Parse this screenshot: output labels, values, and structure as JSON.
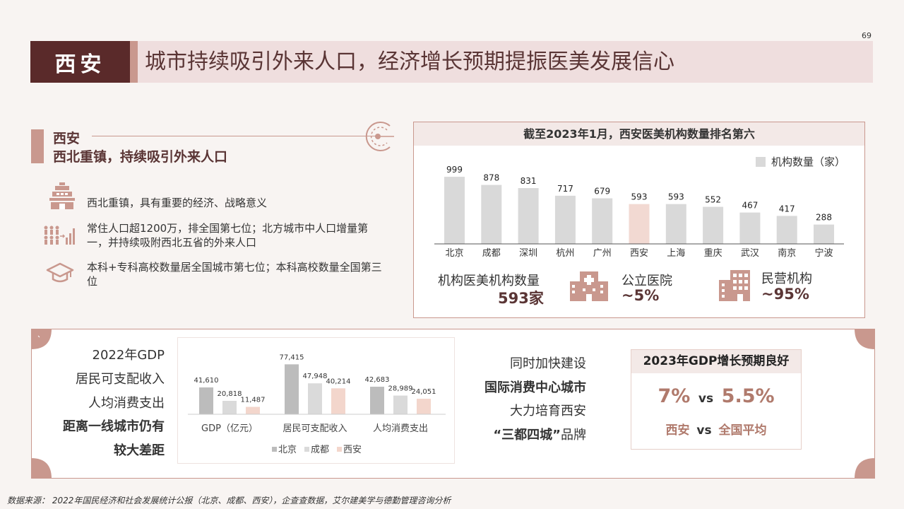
{
  "page_number": "69",
  "header": {
    "city": "西安",
    "title": "城市持续吸引外来人口，经济增长预期提振医美发展信心"
  },
  "section": {
    "title_line1": "西安",
    "title_line2": "西北重镇，持续吸引外来人口",
    "bullets": [
      {
        "icon": "pagoda-icon",
        "text": "西北重镇，具有重要的经济、战略意义"
      },
      {
        "icon": "population-growth-icon",
        "text": "常住人口超1200万，排全国第七位；北方城市中人口增量第一，并持续吸附西北五省的外来人口"
      },
      {
        "icon": "graduation-cap-icon",
        "text": "本科+专科高校数量居全国城市第七位；本科高校数量全国第三位"
      }
    ]
  },
  "institution_chart": {
    "title": "截至2023年1月，西安医美机构数量排名第六",
    "legend": "机构数量（家）",
    "stats": {
      "total_label": "机构医美机构数量",
      "total_value": "593家",
      "public_label": "公立医院",
      "public_value": "~5%",
      "private_label": "民营机构",
      "private_value": "~95%"
    }
  },
  "bottom": {
    "left_lines": [
      "2022年GDP",
      "居民可支配收入",
      "人均消费支出"
    ],
    "left_bold_lines": [
      "距离一线城市仍有",
      "较大差距"
    ],
    "mid_lines": [
      {
        "text": "同时加快建设",
        "bold": false
      },
      {
        "text": "国际消费中心城市",
        "bold": true
      },
      {
        "text": "大力培育西安",
        "bold": false
      },
      {
        "text": "“三都四城”",
        "bold": true,
        "suffix": "品牌"
      }
    ],
    "gdp": {
      "title": "2023年GDP增长预期良好",
      "xian_value": "7%",
      "vs": "vs",
      "national_value": "5.5%",
      "xian_label": "西安",
      "national_label": "全国平均"
    }
  },
  "colors": {
    "highlight_bar": "#f2d9d2",
    "gray_bar": "#d9d9d9",
    "dark_gray_bar": "#bcbcbc",
    "light_gray_bar": "#dadada",
    "pink_bar": "#f3d6cc",
    "accent": "#c9988e",
    "dark_red": "#5a2a2a",
    "value_red": "#b07a6c"
  },
  "chart_data": [
    {
      "type": "bar",
      "title": "截至2023年1月，西安医美机构数量排名第六",
      "categories": [
        "北京",
        "成都",
        "深圳",
        "杭州",
        "广州",
        "西安",
        "上海",
        "重庆",
        "武汉",
        "南京",
        "宁波"
      ],
      "series": [
        {
          "name": "机构数量（家）",
          "values": [
            999,
            878,
            831,
            717,
            679,
            593,
            593,
            552,
            467,
            417,
            288
          ]
        }
      ],
      "highlight": "西安",
      "ylim": [
        0,
        1000
      ],
      "legend": "top-right"
    },
    {
      "type": "bar",
      "categories": [
        "GDP（亿元）",
        "居民可支配收入",
        "人均消费支出"
      ],
      "series": [
        {
          "name": "北京",
          "values": [
            41610,
            77415,
            42683
          ],
          "labels": [
            "41,610",
            "77,415",
            "42,683"
          ]
        },
        {
          "name": "成都",
          "values": [
            20818,
            47948,
            28989
          ],
          "labels": [
            "20,818",
            "47,948",
            "28,989"
          ]
        },
        {
          "name": "西安",
          "values": [
            11487,
            40214,
            24051
          ],
          "labels": [
            "11,487",
            "40,214",
            "24,051"
          ]
        }
      ],
      "legend": "bottom"
    }
  ],
  "footer": "数据来源： 2022年国民经济和社会发展统计公报（北京、成都、西安），企查查数据，艾尔建美学与德勤管理咨询分析"
}
